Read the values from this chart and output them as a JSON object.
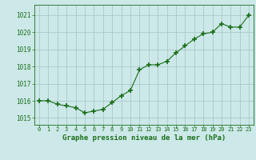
{
  "x": [
    0,
    1,
    2,
    3,
    4,
    5,
    6,
    7,
    8,
    9,
    10,
    11,
    12,
    13,
    14,
    15,
    16,
    17,
    18,
    19,
    20,
    21,
    22,
    23
  ],
  "y": [
    1016.0,
    1016.0,
    1015.8,
    1015.7,
    1015.6,
    1015.3,
    1015.4,
    1015.5,
    1015.9,
    1016.3,
    1016.6,
    1017.8,
    1018.1,
    1018.1,
    1018.3,
    1018.8,
    1019.2,
    1019.6,
    1019.9,
    1020.0,
    1020.5,
    1020.3,
    1020.3,
    1021.0
  ],
  "line_color": "#1a6e1a",
  "marker_color": "#1a6e1a",
  "bg_color": "#cce8e8",
  "grid_color": "#aac8c8",
  "xlabel": "Graphe pression niveau de la mer (hPa)",
  "xlabel_color": "#1a6e1a",
  "tick_color": "#1a6e1a",
  "ylim": [
    1014.6,
    1021.6
  ],
  "yticks": [
    1015,
    1016,
    1017,
    1018,
    1019,
    1020,
    1021
  ],
  "xticks": [
    0,
    1,
    2,
    3,
    4,
    5,
    6,
    7,
    8,
    9,
    10,
    11,
    12,
    13,
    14,
    15,
    16,
    17,
    18,
    19,
    20,
    21,
    22,
    23
  ]
}
